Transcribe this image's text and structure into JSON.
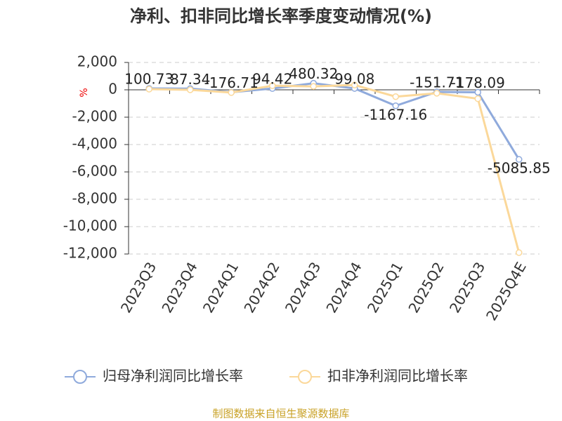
{
  "chart_data": {
    "type": "line",
    "title": "净利、扣非同比增长率季度变动情况(%)",
    "y_label": "%",
    "source": "制图数据来自恒生聚源数据库",
    "categories": [
      "2023Q3",
      "2023Q4",
      "2024Q1",
      "2024Q2",
      "2024Q3",
      "2024Q4",
      "2025Q1",
      "2025Q2",
      "2025Q3",
      "2025Q4E"
    ],
    "series": [
      {
        "name": "归母净利润同比增长率",
        "color": "#8faadc",
        "values": [
          100.73,
          87.34,
          -176.71,
          94.42,
          480.32,
          99.08,
          -1167.16,
          -151.71,
          -178.09,
          -5085.85
        ]
      },
      {
        "name": "扣非净利润同比增长率",
        "color": "#fbd89a",
        "values": [
          50,
          0,
          -200,
          300,
          250,
          350,
          -500,
          -250,
          -650,
          -11900
        ]
      }
    ],
    "ylim": [
      -12000,
      2000
    ],
    "yticks": [
      {
        "value": 2000,
        "label": "2,000"
      },
      0,
      {
        "value": -2000,
        "label": "-2,000"
      },
      {
        "value": -4000,
        "label": "-4,000"
      },
      {
        "value": -6000,
        "label": "-6,000"
      },
      {
        "value": -8000,
        "label": "-8,000"
      },
      {
        "value": -10000,
        "label": "-10,000"
      },
      {
        "value": -12000,
        "label": "-12,000"
      }
    ],
    "grid": true
  }
}
